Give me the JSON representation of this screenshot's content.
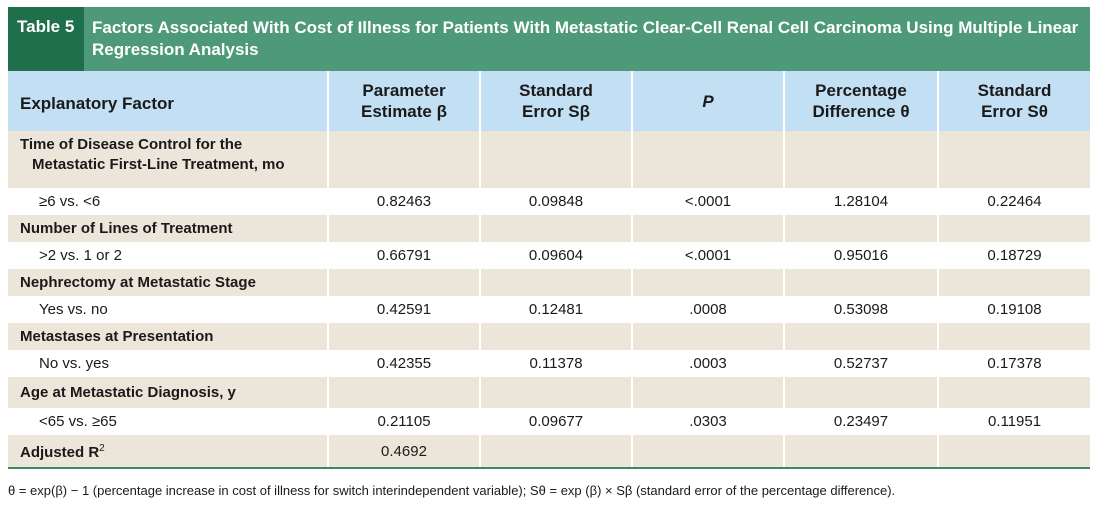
{
  "table_label": "Table 5",
  "table_title": "Factors Associated With Cost of Illness for Patients With Metastatic Clear-Cell Renal Cell Carcinoma Using Multiple Linear Regression Analysis",
  "columns": {
    "c0": "Explanatory Factor",
    "c1a": "Parameter",
    "c1b": "Estimate β",
    "c2a": "Standard",
    "c2b": "Error Sβ",
    "c3": "P",
    "c4a": "Percentage",
    "c4b": "Difference θ",
    "c5a": "Standard",
    "c5b": "Error Sθ"
  },
  "groups": [
    {
      "factor_line1": "Time of Disease Control for the",
      "factor_line2": "Metastatic First-Line Treatment, mo",
      "comparison": "≥6 vs. <6",
      "estimate": "0.82463",
      "se": "0.09848",
      "p": "<.0001",
      "pct": "1.28104",
      "se_pct": "0.22464"
    },
    {
      "factor": "Number of Lines of Treatment",
      "comparison": ">2 vs. 1 or 2",
      "estimate": "0.66791",
      "se": "0.09604",
      "p": "<.0001",
      "pct": "0.95016",
      "se_pct": "0.18729"
    },
    {
      "factor": "Nephrectomy at Metastatic Stage",
      "comparison": "Yes vs. no",
      "estimate": "0.42591",
      "se": "0.12481",
      "p": ".0008",
      "pct": "0.53098",
      "se_pct": "0.19108"
    },
    {
      "factor": "Metastases at Presentation",
      "comparison": "No vs. yes",
      "estimate": "0.42355",
      "se": "0.11378",
      "p": ".0003",
      "pct": "0.52737",
      "se_pct": "0.17378"
    },
    {
      "factor": "Age at Metastatic Diagnosis, y",
      "comparison": "<65 vs. ≥65",
      "estimate": "0.21105",
      "se": "0.09677",
      "p": ".0303",
      "pct": "0.23497",
      "se_pct": "0.11951"
    }
  ],
  "adjusted": {
    "label": "Adjusted R",
    "sup": "2",
    "value": "0.4692"
  },
  "footnote": "θ = exp(β) − 1 (percentage increase in cost of illness for switch interindependent variable); Sθ = exp (β) × Sβ (standard error of the percentage difference)."
}
